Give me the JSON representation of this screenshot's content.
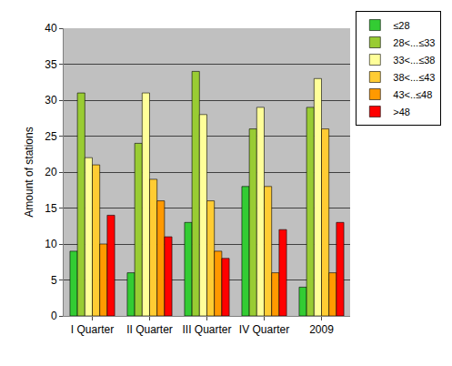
{
  "chart_data": {
    "type": "bar",
    "categories": [
      "I Quarter",
      "II Quarter",
      "III Quarter",
      "IV Quarter",
      "2009"
    ],
    "y_label": "Amount of stations",
    "ylim": [
      0,
      40
    ],
    "yticks": [
      0,
      5,
      10,
      15,
      20,
      25,
      30,
      35,
      40
    ],
    "grid": true,
    "legend": "top right",
    "series": [
      {
        "name": "≤28",
        "color": "#33cc33",
        "values": [
          9,
          6,
          13,
          18,
          4
        ]
      },
      {
        "name": "28<...≤33",
        "color": "#99cc33",
        "values": [
          31,
          24,
          34,
          26,
          29
        ]
      },
      {
        "name": "33<...≤38",
        "color": "#ffff99",
        "values": [
          22,
          31,
          28,
          29,
          33
        ]
      },
      {
        "name": "38<...≤43",
        "color": "#ffcc33",
        "values": [
          21,
          19,
          16,
          18,
          26
        ]
      },
      {
        "name": "43<..≤48",
        "color": "#ff9900",
        "values": [
          10,
          16,
          9,
          6,
          6
        ]
      },
      {
        "name": ">48",
        "color": "#ff0000",
        "values": [
          14,
          11,
          8,
          12,
          13
        ]
      }
    ]
  }
}
